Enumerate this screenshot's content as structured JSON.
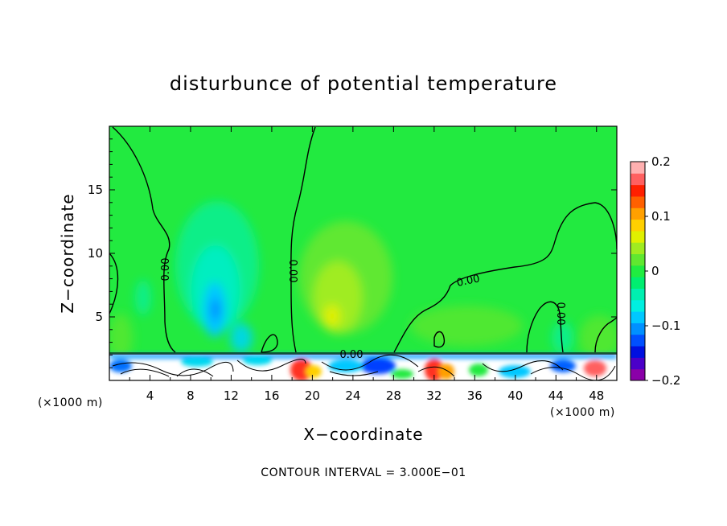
{
  "chart_data": {
    "type": "heatmap",
    "title": "disturbunce of potential temperature",
    "xlabel": "X−coordinate",
    "ylabel": "Z−coordinate",
    "x_unit_left": "(×1000 m)",
    "x_unit_right": "(×1000 m)",
    "xlim": [
      0,
      50
    ],
    "ylim": [
      0,
      20
    ],
    "x_ticks": [
      4,
      8,
      12,
      16,
      20,
      24,
      28,
      32,
      36,
      40,
      44,
      48
    ],
    "y_ticks": [
      5,
      10,
      15
    ],
    "colorbar": {
      "min": -0.2,
      "max": 0.2,
      "tick_values": [
        0.2,
        0.1,
        0,
        -0.1,
        -0.2
      ],
      "tick_labels": [
        "0.2",
        "0.1",
        "0",
        "−0.1",
        "−0.2"
      ],
      "colors": [
        "#8a00a8",
        "#4b00c8",
        "#0010e0",
        "#0050ff",
        "#0090ff",
        "#00c8ff",
        "#00f0e0",
        "#00f0b0",
        "#00ee70",
        "#20ec40",
        "#60e830",
        "#a0ec20",
        "#e0f000",
        "#ffd000",
        "#ffa000",
        "#ff6000",
        "#ff2000",
        "#ff6060",
        "#ffb0b0"
      ]
    },
    "contour_labels": [
      "0.00",
      "0.00",
      "0.00",
      "0.00",
      "0.00"
    ],
    "contour_interval_text": "CONTOUR INTERVAL = 3.000E−01"
  }
}
